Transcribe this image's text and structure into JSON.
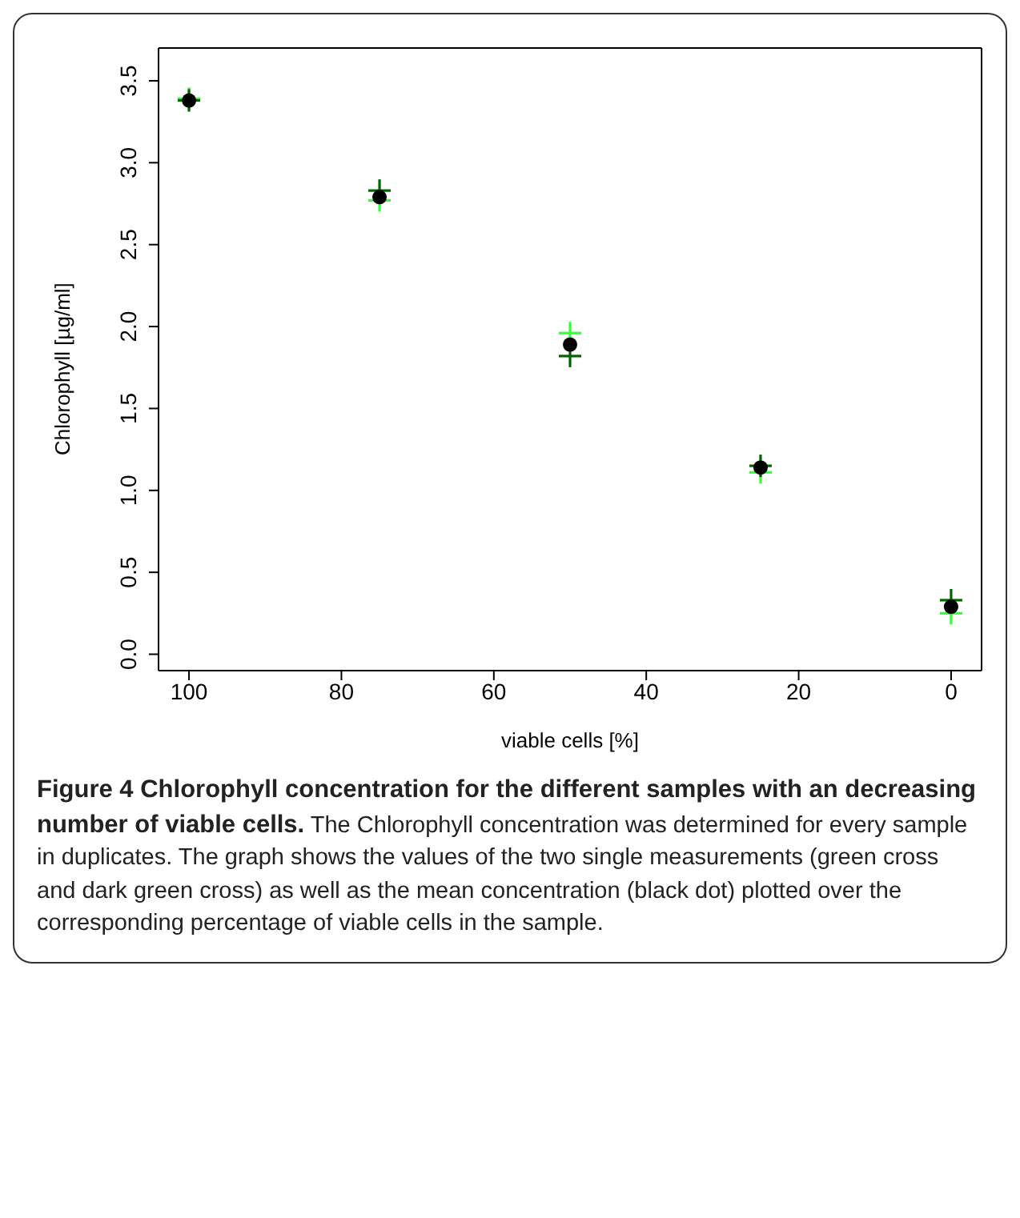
{
  "chart_data": {
    "type": "scatter",
    "title": "Figure 4 Chlorophyll concentration for the different samples with an decreasing number of viable cells.",
    "annotations": [
      "The Chlorophyll concentration was determined for every sample in duplicates. The graph shows the values of the two single measurements (green cross and dark green cross) as well as the mean concentration (black dot) plotted over the corresponding percentage of viable cells in the sample."
    ],
    "xlabel": "viable cells [%]",
    "ylabel": "Chlorophyll [µg/ml]",
    "x": [
      100,
      75,
      50,
      25,
      0
    ],
    "series": [
      {
        "color": "#33ff33",
        "marker": "cross",
        "values": [
          3.39,
          2.77,
          1.96,
          1.11,
          0.25
        ]
      },
      {
        "color": "#006400",
        "marker": "cross",
        "values": [
          3.38,
          2.83,
          1.82,
          1.15,
          0.33
        ]
      },
      {
        "color": "#000000",
        "marker": "circle",
        "values": [
          3.38,
          2.79,
          1.89,
          1.14,
          0.29
        ]
      }
    ],
    "xlim": [
      104,
      -4
    ],
    "xticks": [
      100,
      80,
      60,
      40,
      20,
      0
    ],
    "ylim": [
      -0.1,
      3.7
    ],
    "yticks": [
      {
        "value": 0,
        "label": "0.0"
      },
      0.5,
      {
        "value": 1,
        "label": "1.0"
      },
      1.5,
      {
        "value": 2,
        "label": "2.0"
      },
      2.5,
      {
        "value": 3,
        "label": "3.0"
      },
      3.5
    ],
    "grid": false,
    "legend": false
  }
}
